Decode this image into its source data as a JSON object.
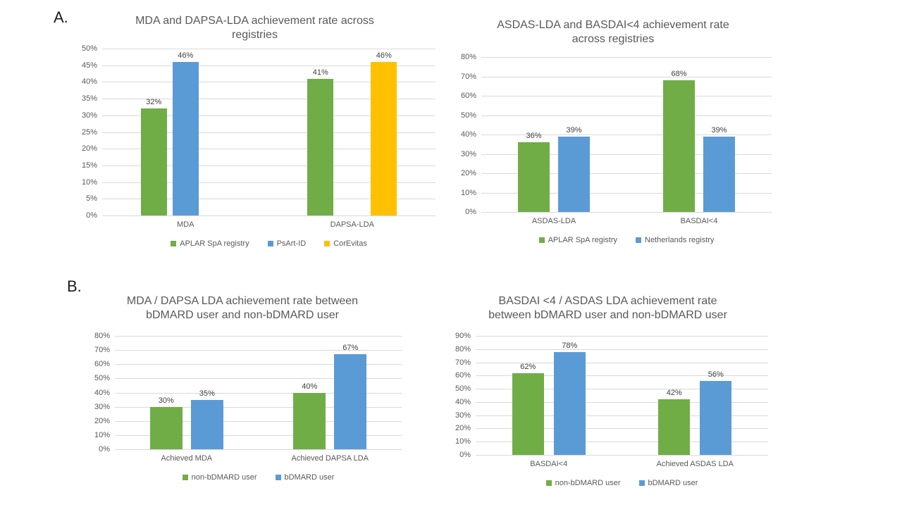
{
  "page": {
    "background": "#ffffff"
  },
  "section_labels": {
    "a": "A.",
    "b": "B."
  },
  "colors": {
    "series_green": "#70AD47",
    "series_blue": "#5B9BD5",
    "series_yellow": "#FFC000",
    "gridline": "#D9D9D9",
    "axis_text": "#595959",
    "value_label_text": "#404040",
    "title_text": "#595959"
  },
  "chart_data": [
    {
      "key": "a-left",
      "type": "bar",
      "section": "A",
      "title": "MDA and DAPSA-LDA achievement rate across\nregistries",
      "categories": [
        "MDA",
        "DAPSA-LDA"
      ],
      "series": [
        {
          "name": "APLAR SpA registry",
          "color": "#70AD47",
          "values": [
            32,
            41
          ]
        },
        {
          "name": "PsArt-ID",
          "color": "#5B9BD5",
          "values": [
            46,
            null
          ]
        },
        {
          "name": "CorEvitas",
          "color": "#FFC000",
          "values": [
            null,
            46
          ]
        }
      ],
      "ylim": [
        0,
        50
      ],
      "ytick_step": 5,
      "yticklabels": [
        "50%",
        "45%",
        "40%",
        "35%",
        "30%",
        "25%",
        "20%",
        "15%",
        "10%",
        "5%",
        "0%"
      ],
      "value_suffix": "%",
      "grid": true,
      "legend_position": "bottom"
    },
    {
      "key": "a-right",
      "type": "bar",
      "section": "A",
      "title": "ASDAS-LDA and BASDAI<4 achievement rate\nacross registries",
      "categories": [
        "ASDAS-LDA",
        "BASDAI<4"
      ],
      "series": [
        {
          "name": "APLAR SpA registry",
          "color": "#70AD47",
          "values": [
            36,
            68
          ]
        },
        {
          "name": "Netherlands registry",
          "color": "#5B9BD5",
          "values": [
            39,
            39
          ]
        }
      ],
      "ylim": [
        0,
        80
      ],
      "ytick_step": 10,
      "yticklabels": [
        "80%",
        "70%",
        "60%",
        "50%",
        "40%",
        "30%",
        "20%",
        "10%",
        "0%"
      ],
      "value_suffix": "%",
      "grid": true,
      "legend_position": "bottom"
    },
    {
      "key": "b-left",
      "type": "bar",
      "section": "B",
      "title": "MDA / DAPSA LDA achievement rate between\nbDMARD user and non-bDMARD user",
      "categories": [
        "Achieved MDA",
        "Achieved DAPSA LDA"
      ],
      "series": [
        {
          "name": "non-bDMARD user",
          "color": "#70AD47",
          "values": [
            30,
            40
          ]
        },
        {
          "name": "bDMARD user",
          "color": "#5B9BD5",
          "values": [
            35,
            67
          ]
        }
      ],
      "ylim": [
        0,
        80
      ],
      "ytick_step": 10,
      "yticklabels": [
        "80%",
        "70%",
        "60%",
        "50%",
        "40%",
        "30%",
        "20%",
        "10%",
        "0%"
      ],
      "value_suffix": "%",
      "grid": true,
      "legend_position": "bottom"
    },
    {
      "key": "b-right",
      "type": "bar",
      "section": "B",
      "title": "BASDAI <4 / ASDAS LDA achievement rate\nbetween bDMARD user and non-bDMARD user",
      "categories": [
        "BASDAI<4",
        "Achieved ASDAS LDA"
      ],
      "series": [
        {
          "name": "non-bDMARD user",
          "color": "#70AD47",
          "values": [
            62,
            42
          ]
        },
        {
          "name": "bDMARD user",
          "color": "#5B9BD5",
          "values": [
            78,
            56
          ]
        }
      ],
      "ylim": [
        0,
        90
      ],
      "ytick_step": 10,
      "yticklabels": [
        "90%",
        "80%",
        "70%",
        "60%",
        "50%",
        "40%",
        "30%",
        "20%",
        "10%",
        "0%"
      ],
      "value_suffix": "%",
      "grid": true,
      "legend_position": "bottom"
    }
  ]
}
